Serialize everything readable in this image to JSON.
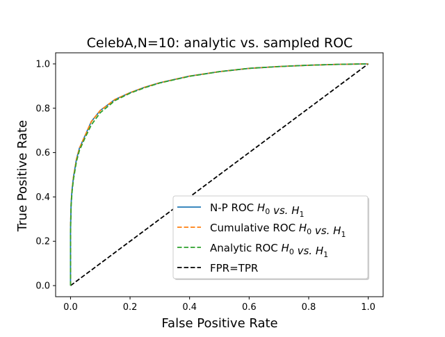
{
  "chart_data": {
    "type": "line",
    "title": "CelebA,N=10: analytic vs. sampled ROC",
    "xlabel": "False Positive Rate",
    "ylabel": "True Positive Rate",
    "xlim": [
      -0.05,
      1.05
    ],
    "ylim": [
      -0.05,
      1.05
    ],
    "xticks": [
      0.0,
      0.2,
      0.4,
      0.6,
      0.8,
      1.0
    ],
    "yticks": [
      0.0,
      0.2,
      0.4,
      0.6,
      0.8,
      1.0
    ],
    "xtick_labels": [
      "0.0",
      "0.2",
      "0.4",
      "0.6",
      "0.8",
      "1.0"
    ],
    "ytick_labels": [
      "0.0",
      "0.2",
      "0.4",
      "0.6",
      "0.8",
      "1.0"
    ],
    "grid": false,
    "legend_position": "lower-right",
    "series": [
      {
        "name": "N-P ROC H0 vs. H1",
        "label_prefix": "N-P ROC",
        "color": "#1f77b4",
        "style": "solid",
        "x": [
          0.0,
          0.0,
          0.002,
          0.005,
          0.01,
          0.02,
          0.03,
          0.05,
          0.07,
          0.1,
          0.15,
          0.2,
          0.25,
          0.3,
          0.4,
          0.5,
          0.6,
          0.7,
          0.8,
          0.9,
          1.0
        ],
        "y": [
          0.0,
          0.25,
          0.37,
          0.43,
          0.49,
          0.57,
          0.62,
          0.68,
          0.74,
          0.79,
          0.84,
          0.87,
          0.895,
          0.915,
          0.945,
          0.965,
          0.98,
          0.988,
          0.994,
          0.998,
          1.0
        ]
      },
      {
        "name": "Cumulative ROC H0 vs. H1",
        "label_prefix": "Cumulative ROC",
        "color": "#ff7f0e",
        "style": "dashed",
        "x": [
          0.0,
          0.0,
          0.002,
          0.005,
          0.01,
          0.02,
          0.03,
          0.05,
          0.07,
          0.1,
          0.15,
          0.2,
          0.25,
          0.3,
          0.4,
          0.5,
          0.6,
          0.7,
          0.8,
          0.9,
          1.0
        ],
        "y": [
          0.0,
          0.25,
          0.37,
          0.43,
          0.49,
          0.57,
          0.62,
          0.68,
          0.74,
          0.79,
          0.84,
          0.87,
          0.895,
          0.915,
          0.945,
          0.965,
          0.98,
          0.988,
          0.994,
          0.998,
          1.0
        ]
      },
      {
        "name": "Analytic ROC H0 vs. H1",
        "label_prefix": "Analytic ROC",
        "color": "#2ca02c",
        "style": "dashed",
        "x": [
          0.0,
          0.0,
          0.002,
          0.005,
          0.01,
          0.02,
          0.03,
          0.05,
          0.07,
          0.1,
          0.15,
          0.2,
          0.25,
          0.3,
          0.4,
          0.5,
          0.6,
          0.7,
          0.8,
          0.9,
          1.0
        ],
        "y": [
          0.0,
          0.24,
          0.36,
          0.42,
          0.48,
          0.56,
          0.61,
          0.67,
          0.725,
          0.78,
          0.835,
          0.868,
          0.893,
          0.914,
          0.944,
          0.965,
          0.98,
          0.988,
          0.994,
          0.998,
          1.0
        ]
      },
      {
        "name": "FPR=TPR",
        "label_prefix": "FPR=TPR",
        "color": "#000000",
        "style": "dashed",
        "x": [
          0.0,
          1.0
        ],
        "y": [
          0.0,
          1.0
        ]
      }
    ]
  }
}
